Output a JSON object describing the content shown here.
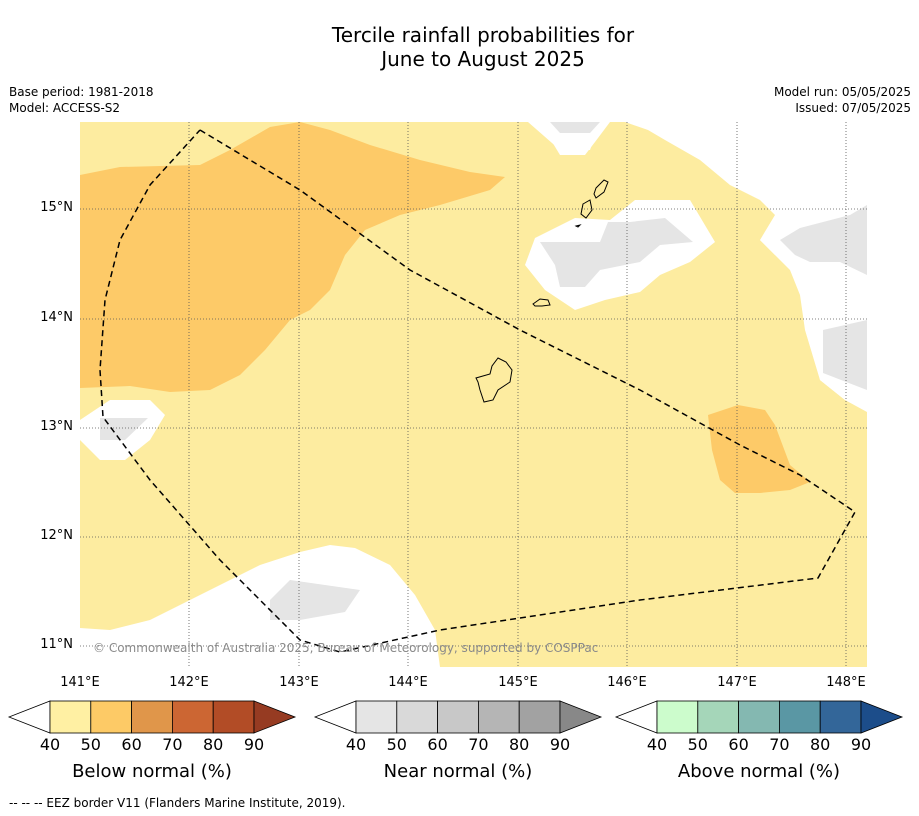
{
  "title_line1": "Tercile rainfall probabilities for",
  "title_line2": "June to August 2025",
  "base_period": "Base period: 1981-2018",
  "model": "Model: ACCESS-S2",
  "model_run": "Model run: 05/05/2025",
  "issued": "Issued: 07/05/2025",
  "copyright": "© Commonwealth of Australia 2025, Bureau of Meteorology, supported by COSPPac",
  "footer": "--  --  -- EEZ border V11 (Flanders Marine Institute, 2019).",
  "map": {
    "lat_labels": [
      "15°N",
      "14°N",
      "13°N",
      "12°N",
      "11°N"
    ],
    "lon_labels": [
      "141°E",
      "142°E",
      "143°E",
      "144°E",
      "145°E",
      "146°E",
      "147°E",
      "148°E"
    ],
    "lon_range": [
      140.9,
      148.2
    ],
    "lat_range": [
      10.8,
      15.8
    ],
    "colors": {
      "below_50": "#fdeca0",
      "below_60": "#fdca68",
      "near_40": "#e5e5e5",
      "land_outline": "#000000",
      "eez": "#000000"
    }
  },
  "colorbars": [
    {
      "label": "Below normal (%)",
      "ticks": [
        "40",
        "50",
        "60",
        "70",
        "80",
        "90"
      ],
      "colors": [
        "#fff0a3",
        "#fdca66",
        "#e0964a",
        "#cc6633",
        "#b24c26",
        "#963b22"
      ]
    },
    {
      "label": "Near normal (%)",
      "ticks": [
        "40",
        "50",
        "60",
        "70",
        "80",
        "90"
      ],
      "colors": [
        "#e5e5e5",
        "#d9d9d9",
        "#c8c8c8",
        "#b5b5b5",
        "#a2a2a2",
        "#888888"
      ]
    },
    {
      "label": "Above normal (%)",
      "ticks": [
        "40",
        "50",
        "60",
        "70",
        "80",
        "90"
      ],
      "colors": [
        "#ccfccc",
        "#a5d6b9",
        "#84b8b1",
        "#5a97a4",
        "#336699",
        "#1c4d8a"
      ]
    }
  ]
}
